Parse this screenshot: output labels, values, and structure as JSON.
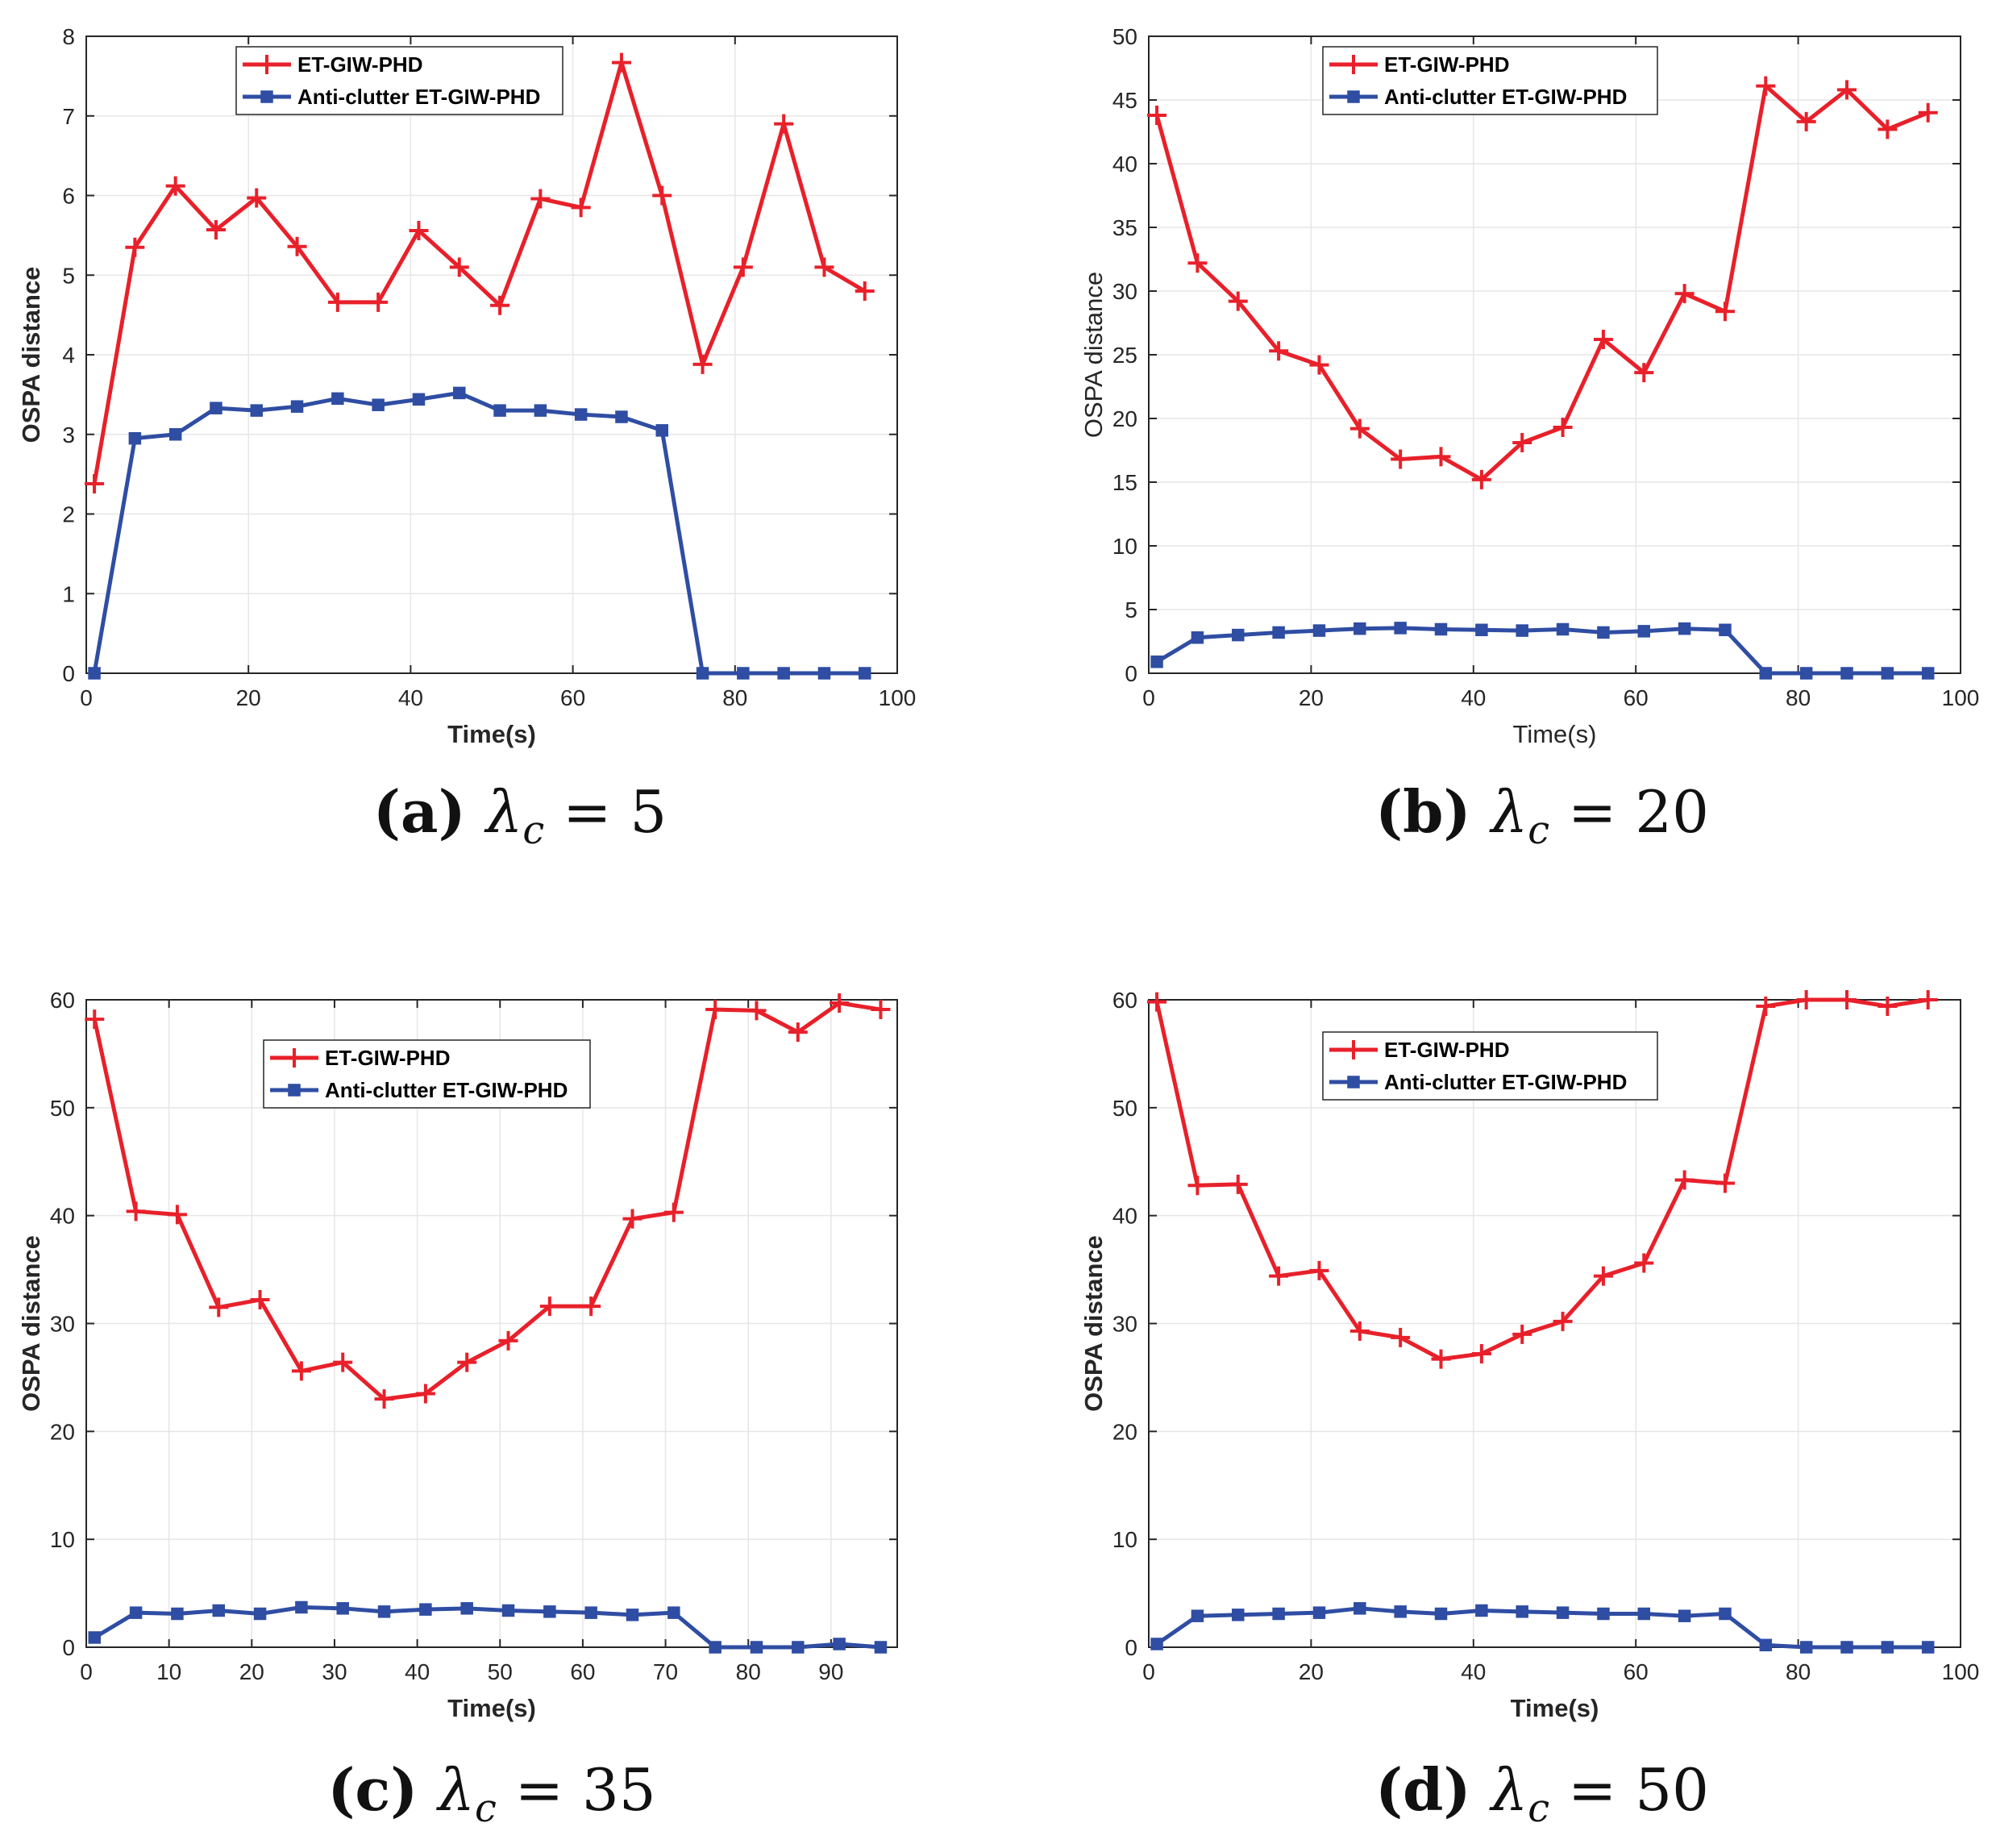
{
  "colors": {
    "et": "#e8202a",
    "anti": "#2f4da3",
    "grid": "#e6e6e6",
    "axis": "#262626"
  },
  "chart_data": [
    {
      "type": "line",
      "id": "a",
      "caption": {
        "label": "(a)",
        "lambda": "λ",
        "sub": "c",
        "eq": "= 5"
      },
      "xlabel": "Time(s)",
      "ylabel": "OSPA distance",
      "xlabel_bold": true,
      "xlim": [
        0,
        100
      ],
      "ylim": [
        0,
        8
      ],
      "xticks": [
        0,
        20,
        40,
        60,
        80,
        100
      ],
      "yticks": [
        0,
        1,
        2,
        3,
        4,
        5,
        6,
        7,
        8
      ],
      "legend_placement": "top-center",
      "x": [
        1,
        6,
        11,
        16,
        21,
        26,
        31,
        36,
        41,
        46,
        51,
        56,
        61,
        66,
        71,
        76,
        81,
        86,
        91,
        96
      ],
      "series": [
        {
          "name": "ET-GIW-PHD",
          "marker": "plus",
          "values": [
            2.38,
            5.35,
            6.12,
            5.57,
            5.97,
            5.36,
            4.66,
            4.66,
            5.56,
            5.1,
            4.62,
            5.96,
            5.85,
            7.67,
            6.0,
            3.88,
            5.1,
            6.9,
            5.1,
            4.8
          ]
        },
        {
          "name": "Anti-clutter ET-GIW-PHD",
          "marker": "square",
          "values": [
            0,
            2.95,
            3.0,
            3.33,
            3.3,
            3.35,
            3.45,
            3.37,
            3.44,
            3.52,
            3.3,
            3.3,
            3.25,
            3.22,
            3.05,
            0,
            0,
            0,
            0,
            0
          ]
        }
      ]
    },
    {
      "type": "line",
      "id": "b",
      "caption": {
        "label": "(b)",
        "lambda": "λ",
        "sub": "c",
        "eq": "= 20"
      },
      "xlabel": "Time(s)",
      "ylabel": "OSPA distance",
      "xlabel_bold": false,
      "xlim": [
        0,
        100
      ],
      "ylim": [
        0,
        50
      ],
      "xticks": [
        0,
        20,
        40,
        60,
        80,
        100
      ],
      "yticks": [
        0,
        5,
        10,
        15,
        20,
        25,
        30,
        35,
        40,
        45,
        50
      ],
      "legend_placement": "top-center",
      "x": [
        1,
        6,
        11,
        16,
        21,
        26,
        31,
        36,
        41,
        46,
        51,
        56,
        61,
        66,
        71,
        76,
        81,
        86,
        91,
        96
      ],
      "series": [
        {
          "name": "ET-GIW-PHD",
          "marker": "plus",
          "values": [
            43.8,
            32.2,
            29.2,
            25.3,
            24.2,
            19.2,
            16.8,
            17.0,
            15.2,
            18.1,
            19.3,
            26.2,
            23.6,
            29.8,
            28.4,
            46.1,
            43.3,
            45.8,
            42.7,
            44.0
          ]
        },
        {
          "name": "Anti-clutter ET-GIW-PHD",
          "marker": "square",
          "values": [
            0.9,
            2.8,
            3.0,
            3.2,
            3.35,
            3.5,
            3.55,
            3.45,
            3.4,
            3.35,
            3.45,
            3.2,
            3.3,
            3.5,
            3.4,
            0,
            0,
            0,
            0,
            0
          ]
        }
      ]
    },
    {
      "type": "line",
      "id": "c",
      "caption": {
        "label": "(c)",
        "lambda": "λ",
        "sub": "c",
        "eq": "= 35"
      },
      "xlabel": "Time(s)",
      "ylabel": "OSPA distance",
      "xlabel_bold": true,
      "xlim": [
        0,
        98
      ],
      "ylim": [
        0,
        60
      ],
      "xticks": [
        0,
        10,
        20,
        30,
        40,
        50,
        60,
        70,
        80,
        90
      ],
      "yticks": [
        0,
        10,
        20,
        30,
        40,
        50,
        60
      ],
      "legend_placement": "upper-center",
      "x": [
        1,
        6,
        11,
        16,
        21,
        26,
        31,
        36,
        41,
        46,
        51,
        56,
        61,
        66,
        71,
        76,
        81,
        86,
        91,
        96
      ],
      "series": [
        {
          "name": "ET-GIW-PHD",
          "marker": "plus",
          "values": [
            58.2,
            40.4,
            40.1,
            31.5,
            32.2,
            25.6,
            26.4,
            23.0,
            23.5,
            26.4,
            28.4,
            31.6,
            31.6,
            39.7,
            40.3,
            59.1,
            59.0,
            57.0,
            59.7,
            59.1
          ]
        },
        {
          "name": "Anti-clutter ET-GIW-PHD",
          "marker": "square",
          "values": [
            0.9,
            3.2,
            3.1,
            3.4,
            3.1,
            3.7,
            3.6,
            3.3,
            3.5,
            3.6,
            3.4,
            3.3,
            3.2,
            3.0,
            3.2,
            0,
            0,
            0,
            0.3,
            0
          ]
        }
      ]
    },
    {
      "type": "line",
      "id": "d",
      "caption": {
        "label": "(d)",
        "lambda": "λ",
        "sub": "c",
        "eq": "= 50"
      },
      "xlabel": "Time(s)",
      "ylabel": "OSPA distance",
      "xlabel_bold": true,
      "xlim": [
        0,
        100
      ],
      "ylim": [
        0,
        60
      ],
      "xticks": [
        0,
        20,
        40,
        60,
        80,
        100
      ],
      "yticks": [
        0,
        10,
        20,
        30,
        40,
        50,
        60
      ],
      "legend_placement": "top-center",
      "x": [
        1,
        6,
        11,
        16,
        21,
        26,
        31,
        36,
        41,
        46,
        51,
        56,
        61,
        66,
        71,
        76,
        81,
        86,
        91,
        96
      ],
      "series": [
        {
          "name": "ET-GIW-PHD",
          "marker": "plus",
          "values": [
            59.8,
            42.8,
            42.9,
            34.4,
            34.9,
            29.3,
            28.7,
            26.7,
            27.2,
            29.0,
            30.2,
            34.4,
            35.6,
            43.3,
            43.0,
            59.4,
            60.0,
            60.0,
            59.4,
            60.0
          ]
        },
        {
          "name": "Anti-clutter ET-GIW-PHD",
          "marker": "square",
          "values": [
            0.3,
            2.9,
            3.0,
            3.1,
            3.2,
            3.6,
            3.3,
            3.1,
            3.4,
            3.3,
            3.2,
            3.1,
            3.1,
            2.9,
            3.1,
            0.2,
            0,
            0,
            0,
            0
          ]
        }
      ]
    }
  ]
}
